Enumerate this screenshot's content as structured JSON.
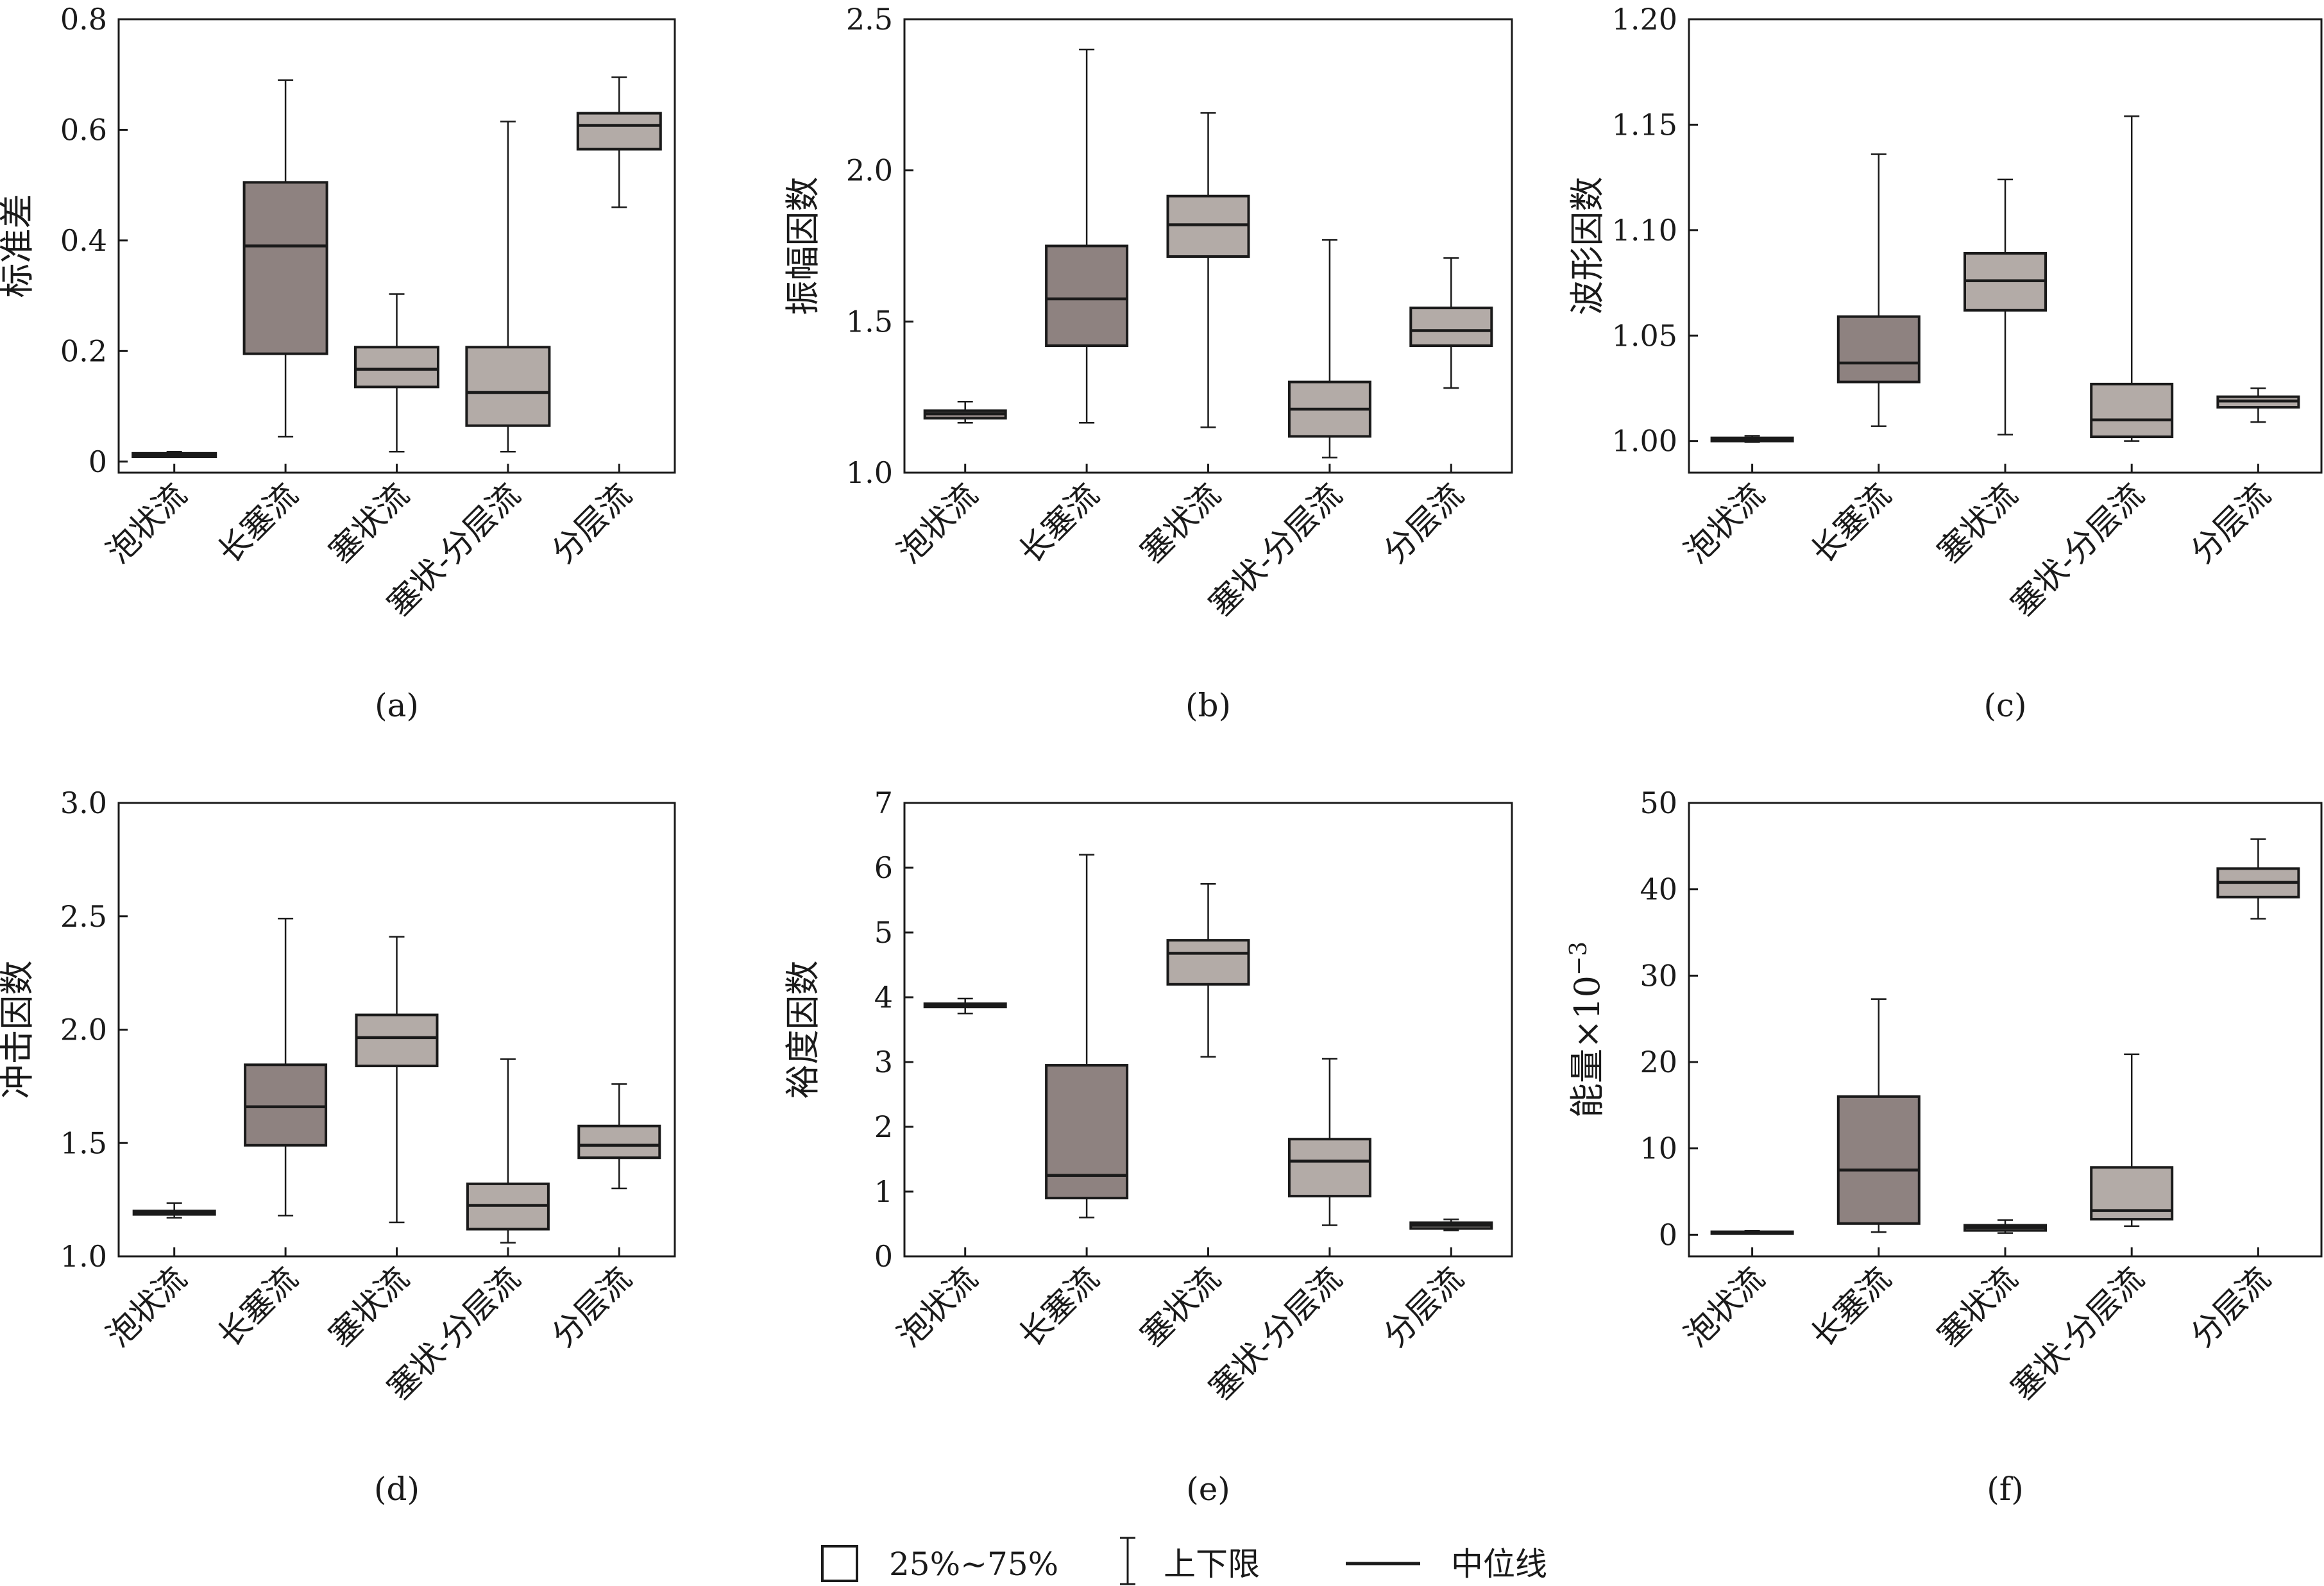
{
  "chart_data": [
    {
      "type": "boxplot",
      "panel_label": "(a)",
      "ylabel": "标准差",
      "ylabel_sup": "",
      "ylim": [
        -0.02,
        0.8
      ],
      "yticks": [
        0,
        0.2,
        0.4,
        0.6,
        0.8
      ],
      "ytick_labels": [
        "0",
        "0.2",
        "0.4",
        "0.6",
        "0.8"
      ],
      "categories": [
        "泡状流",
        "长塞流",
        "塞状流",
        "塞状-分层流",
        "分层流"
      ],
      "boxes": [
        {
          "whisker_low": 0.008,
          "q1": 0.009,
          "median": 0.012,
          "q3": 0.015,
          "whisker_high": 0.018,
          "shade": "dark"
        },
        {
          "whisker_low": 0.045,
          "q1": 0.195,
          "median": 0.39,
          "q3": 0.505,
          "whisker_high": 0.69,
          "shade": "dark"
        },
        {
          "whisker_low": 0.018,
          "q1": 0.135,
          "median": 0.167,
          "q3": 0.207,
          "whisker_high": 0.303,
          "shade": "light"
        },
        {
          "whisker_low": 0.018,
          "q1": 0.065,
          "median": 0.125,
          "q3": 0.207,
          "whisker_high": 0.615,
          "shade": "light"
        },
        {
          "whisker_low": 0.46,
          "q1": 0.565,
          "median": 0.608,
          "q3": 0.63,
          "whisker_high": 0.695,
          "shade": "light"
        }
      ]
    },
    {
      "type": "boxplot",
      "panel_label": "(b)",
      "ylabel": "振幅因数",
      "ylabel_sup": "",
      "ylim": [
        1.0,
        2.5
      ],
      "yticks": [
        1.0,
        1.5,
        2.0,
        2.5
      ],
      "ytick_labels": [
        "1.0",
        "1.5",
        "2.0",
        "2.5"
      ],
      "categories": [
        "泡状流",
        "长塞流",
        "塞状流",
        "塞状-分层流",
        "分层流"
      ],
      "boxes": [
        {
          "whisker_low": 1.165,
          "q1": 1.18,
          "median": 1.195,
          "q3": 1.205,
          "whisker_high": 1.235,
          "shade": "dark"
        },
        {
          "whisker_low": 1.165,
          "q1": 1.42,
          "median": 1.575,
          "q3": 1.75,
          "whisker_high": 2.4,
          "shade": "dark"
        },
        {
          "whisker_low": 1.15,
          "q1": 1.715,
          "median": 1.82,
          "q3": 1.915,
          "whisker_high": 2.19,
          "shade": "light"
        },
        {
          "whisker_low": 1.05,
          "q1": 1.12,
          "median": 1.21,
          "q3": 1.3,
          "whisker_high": 1.77,
          "shade": "light"
        },
        {
          "whisker_low": 1.28,
          "q1": 1.42,
          "median": 1.47,
          "q3": 1.545,
          "whisker_high": 1.71,
          "shade": "light"
        }
      ]
    },
    {
      "type": "boxplot",
      "panel_label": "(c)",
      "ylabel": "波形因数",
      "ylabel_sup": "",
      "ylim": [
        0.985,
        1.2
      ],
      "yticks": [
        1.0,
        1.05,
        1.1,
        1.15,
        1.2
      ],
      "ytick_labels": [
        "1.00",
        "1.05",
        "1.10",
        "1.15",
        "1.20"
      ],
      "categories": [
        "泡状流",
        "长塞流",
        "塞状流",
        "塞状-分层流",
        "分层流"
      ],
      "boxes": [
        {
          "whisker_low": 0.9995,
          "q1": 1.0,
          "median": 1.001,
          "q3": 1.0015,
          "whisker_high": 1.0025,
          "shade": "dark"
        },
        {
          "whisker_low": 1.007,
          "q1": 1.028,
          "median": 1.037,
          "q3": 1.059,
          "whisker_high": 1.136,
          "shade": "dark"
        },
        {
          "whisker_low": 1.003,
          "q1": 1.062,
          "median": 1.076,
          "q3": 1.089,
          "whisker_high": 1.124,
          "shade": "light"
        },
        {
          "whisker_low": 1.0,
          "q1": 1.002,
          "median": 1.01,
          "q3": 1.027,
          "whisker_high": 1.154,
          "shade": "light"
        },
        {
          "whisker_low": 1.009,
          "q1": 1.016,
          "median": 1.019,
          "q3": 1.021,
          "whisker_high": 1.025,
          "shade": "light"
        }
      ]
    },
    {
      "type": "boxplot",
      "panel_label": "(d)",
      "ylabel": "冲击因数",
      "ylabel_sup": "",
      "ylim": [
        1.0,
        3.0
      ],
      "yticks": [
        1.0,
        1.5,
        2.0,
        2.5,
        3.0
      ],
      "ytick_labels": [
        "1.0",
        "1.5",
        "2.0",
        "2.5",
        "3.0"
      ],
      "categories": [
        "泡状流",
        "长塞流",
        "塞状流",
        "塞状-分层流",
        "分层流"
      ],
      "boxes": [
        {
          "whisker_low": 1.17,
          "q1": 1.185,
          "median": 1.195,
          "q3": 1.2,
          "whisker_high": 1.235,
          "shade": "dark"
        },
        {
          "whisker_low": 1.18,
          "q1": 1.49,
          "median": 1.66,
          "q3": 1.845,
          "whisker_high": 2.49,
          "shade": "dark"
        },
        {
          "whisker_low": 1.15,
          "q1": 1.84,
          "median": 1.965,
          "q3": 2.065,
          "whisker_high": 2.41,
          "shade": "light"
        },
        {
          "whisker_low": 1.06,
          "q1": 1.12,
          "median": 1.225,
          "q3": 1.32,
          "whisker_high": 1.87,
          "shade": "light"
        },
        {
          "whisker_low": 1.3,
          "q1": 1.435,
          "median": 1.49,
          "q3": 1.575,
          "whisker_high": 1.76,
          "shade": "light"
        }
      ]
    },
    {
      "type": "boxplot",
      "panel_label": "(e)",
      "ylabel": "裕度因数",
      "ylabel_sup": "",
      "ylim": [
        0,
        7
      ],
      "yticks": [
        0,
        1,
        2,
        3,
        4,
        5,
        6,
        7
      ],
      "ytick_labels": [
        "0",
        "1",
        "2",
        "3",
        "4",
        "5",
        "6",
        "7"
      ],
      "categories": [
        "泡状流",
        "长塞流",
        "塞状流",
        "塞状-分层流",
        "分层流"
      ],
      "boxes": [
        {
          "whisker_low": 3.75,
          "q1": 3.85,
          "median": 3.88,
          "q3": 3.9,
          "whisker_high": 3.98,
          "shade": "dark"
        },
        {
          "whisker_low": 0.6,
          "q1": 0.9,
          "median": 1.25,
          "q3": 2.95,
          "whisker_high": 6.2,
          "shade": "dark"
        },
        {
          "whisker_low": 3.08,
          "q1": 4.2,
          "median": 4.68,
          "q3": 4.88,
          "whisker_high": 5.75,
          "shade": "light"
        },
        {
          "whisker_low": 0.48,
          "q1": 0.93,
          "median": 1.47,
          "q3": 1.81,
          "whisker_high": 3.05,
          "shade": "light"
        },
        {
          "whisker_low": 0.4,
          "q1": 0.43,
          "median": 0.48,
          "q3": 0.52,
          "whisker_high": 0.57,
          "shade": "light"
        }
      ]
    },
    {
      "type": "boxplot",
      "panel_label": "(f)",
      "ylabel": "能量×10",
      "ylabel_sup": "−3",
      "ylim": [
        -2.5,
        50
      ],
      "yticks": [
        0,
        10,
        20,
        30,
        40,
        50
      ],
      "ytick_labels": [
        "0",
        "10",
        "20",
        "30",
        "40",
        "50"
      ],
      "categories": [
        "泡状流",
        "长塞流",
        "塞状流",
        "塞状-分层流",
        "分层流"
      ],
      "boxes": [
        {
          "whisker_low": 0.1,
          "q1": 0.15,
          "median": 0.25,
          "q3": 0.35,
          "whisker_high": 0.45,
          "shade": "dark"
        },
        {
          "whisker_low": 0.3,
          "q1": 1.3,
          "median": 7.5,
          "q3": 16.0,
          "whisker_high": 27.3,
          "shade": "dark"
        },
        {
          "whisker_low": 0.2,
          "q1": 0.5,
          "median": 0.85,
          "q3": 1.1,
          "whisker_high": 1.7,
          "shade": "light"
        },
        {
          "whisker_low": 1.0,
          "q1": 1.8,
          "median": 2.8,
          "q3": 7.8,
          "whisker_high": 20.9,
          "shade": "light"
        },
        {
          "whisker_low": 36.6,
          "q1": 39.1,
          "median": 40.8,
          "q3": 42.4,
          "whisker_high": 45.8,
          "shade": "light"
        }
      ]
    }
  ],
  "legend": {
    "box_label": "25%~75%",
    "whisker_label": "上下限",
    "median_label": "中位线"
  },
  "colors": {
    "box_dark": "#8e8280",
    "box_light": "#b3aba7",
    "line": "#1a1a1a"
  }
}
